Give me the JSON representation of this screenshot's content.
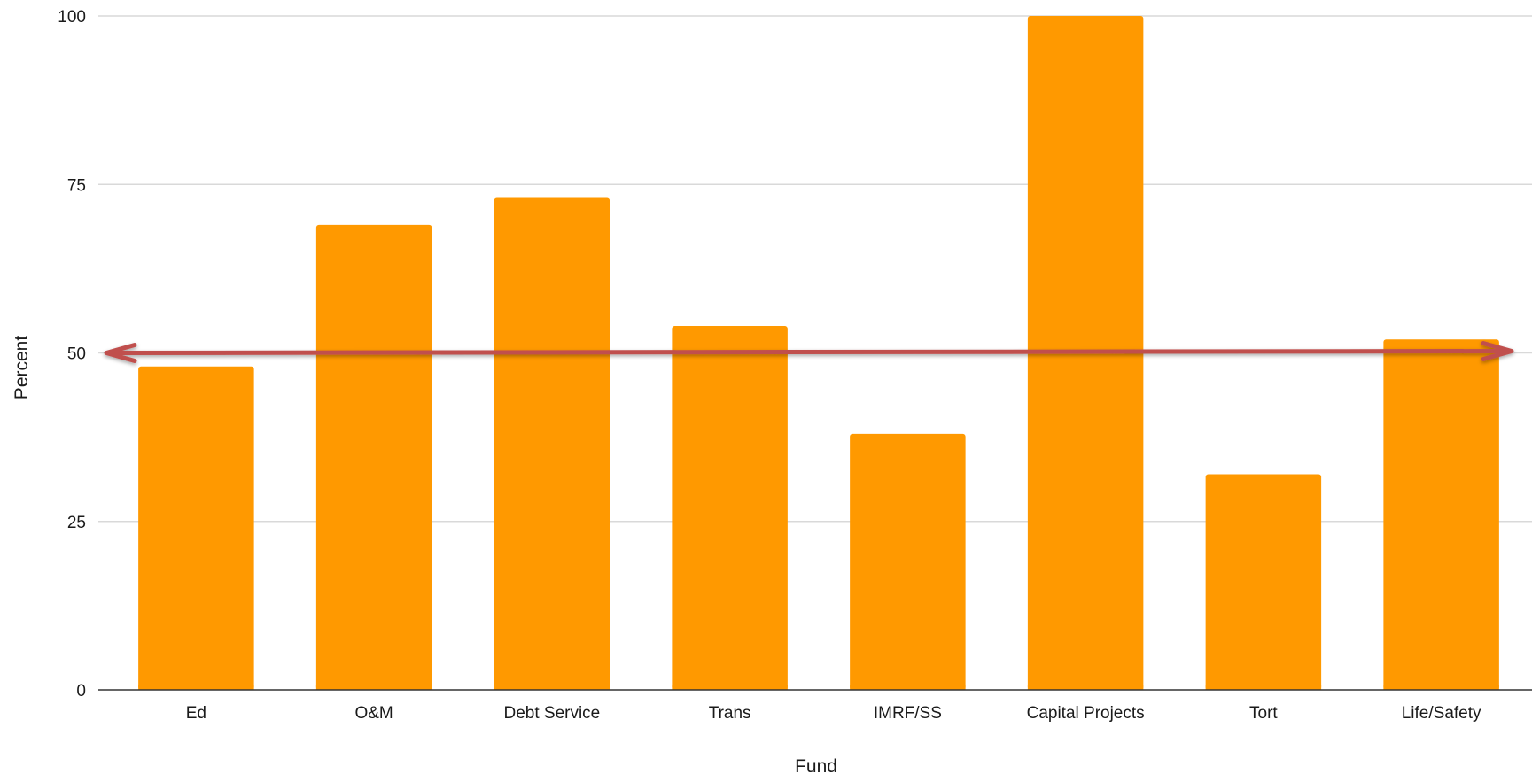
{
  "chart_data": {
    "type": "bar",
    "categories": [
      "Ed",
      "O&M",
      "Debt Service",
      "Trans",
      "IMRF/SS",
      "Capital Projects",
      "Tort",
      "Life/Safety"
    ],
    "values": [
      48,
      69,
      73,
      54,
      38,
      100,
      32,
      52
    ],
    "xlabel": "Fund",
    "ylabel": "Percent",
    "ylim": [
      0,
      100
    ],
    "yticks": [
      0,
      25,
      50,
      75,
      100
    ],
    "grid": true,
    "reference_line": {
      "value": 50,
      "style": "double-headed arrow",
      "color": "#c0504d"
    },
    "colors": {
      "bar": "#ff9900",
      "grid": "#d9d9d9",
      "axis": "#333333",
      "reference_line": "#c0504d"
    }
  }
}
